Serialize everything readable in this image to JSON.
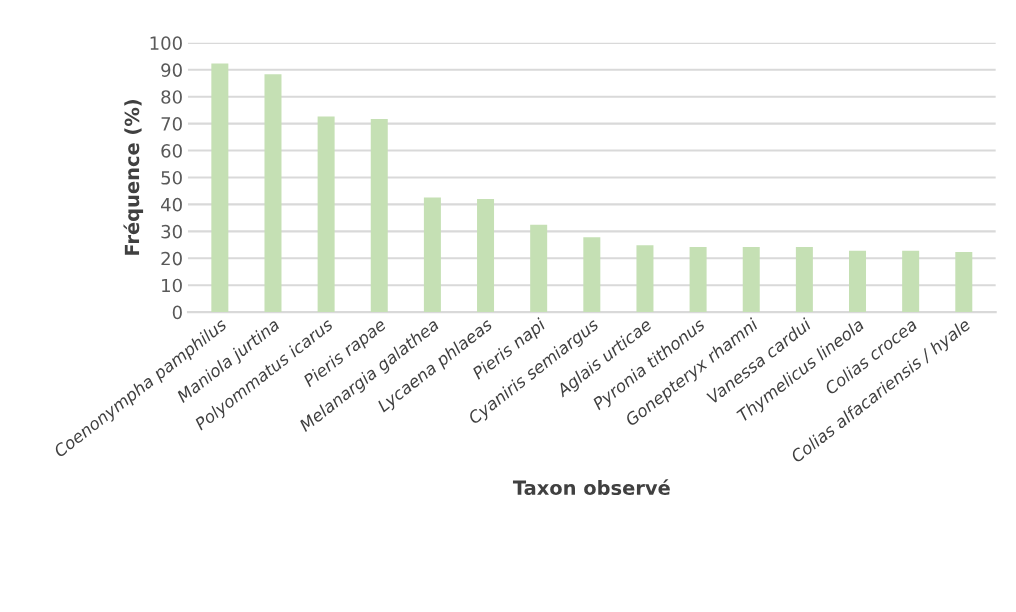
{
  "chart_data": {
    "type": "bar",
    "xlabel": "Taxon observé",
    "ylabel": "Fréquence (%)",
    "categories": [
      "Coenonympha pamphilus",
      "Maniola jurtina",
      "Polyommatus icarus",
      "Pieris rapae",
      "Melanargia galathea",
      "Lycaena phlaeas",
      "Pieris napi",
      "Cyaniris semiargus",
      "Aglais urticae",
      "Pyronia tithonus",
      "Gonepteryx rhamni",
      "Vanessa cardui",
      "Thymelicus lineola",
      "Colias crocea",
      "Colias alfacariensis / hyale"
    ],
    "values": [
      92.3,
      88.3,
      72.6,
      71.7,
      42.6,
      42.0,
      32.4,
      27.8,
      24.8,
      24.2,
      24.2,
      24.2,
      22.8,
      22.8,
      22.3
    ],
    "color": "#c5e0b4",
    "ylim": [
      0,
      100
    ],
    "yticks": [
      0,
      10,
      20,
      30,
      40,
      50,
      60,
      70,
      80,
      90,
      100
    ],
    "grid": "y"
  }
}
